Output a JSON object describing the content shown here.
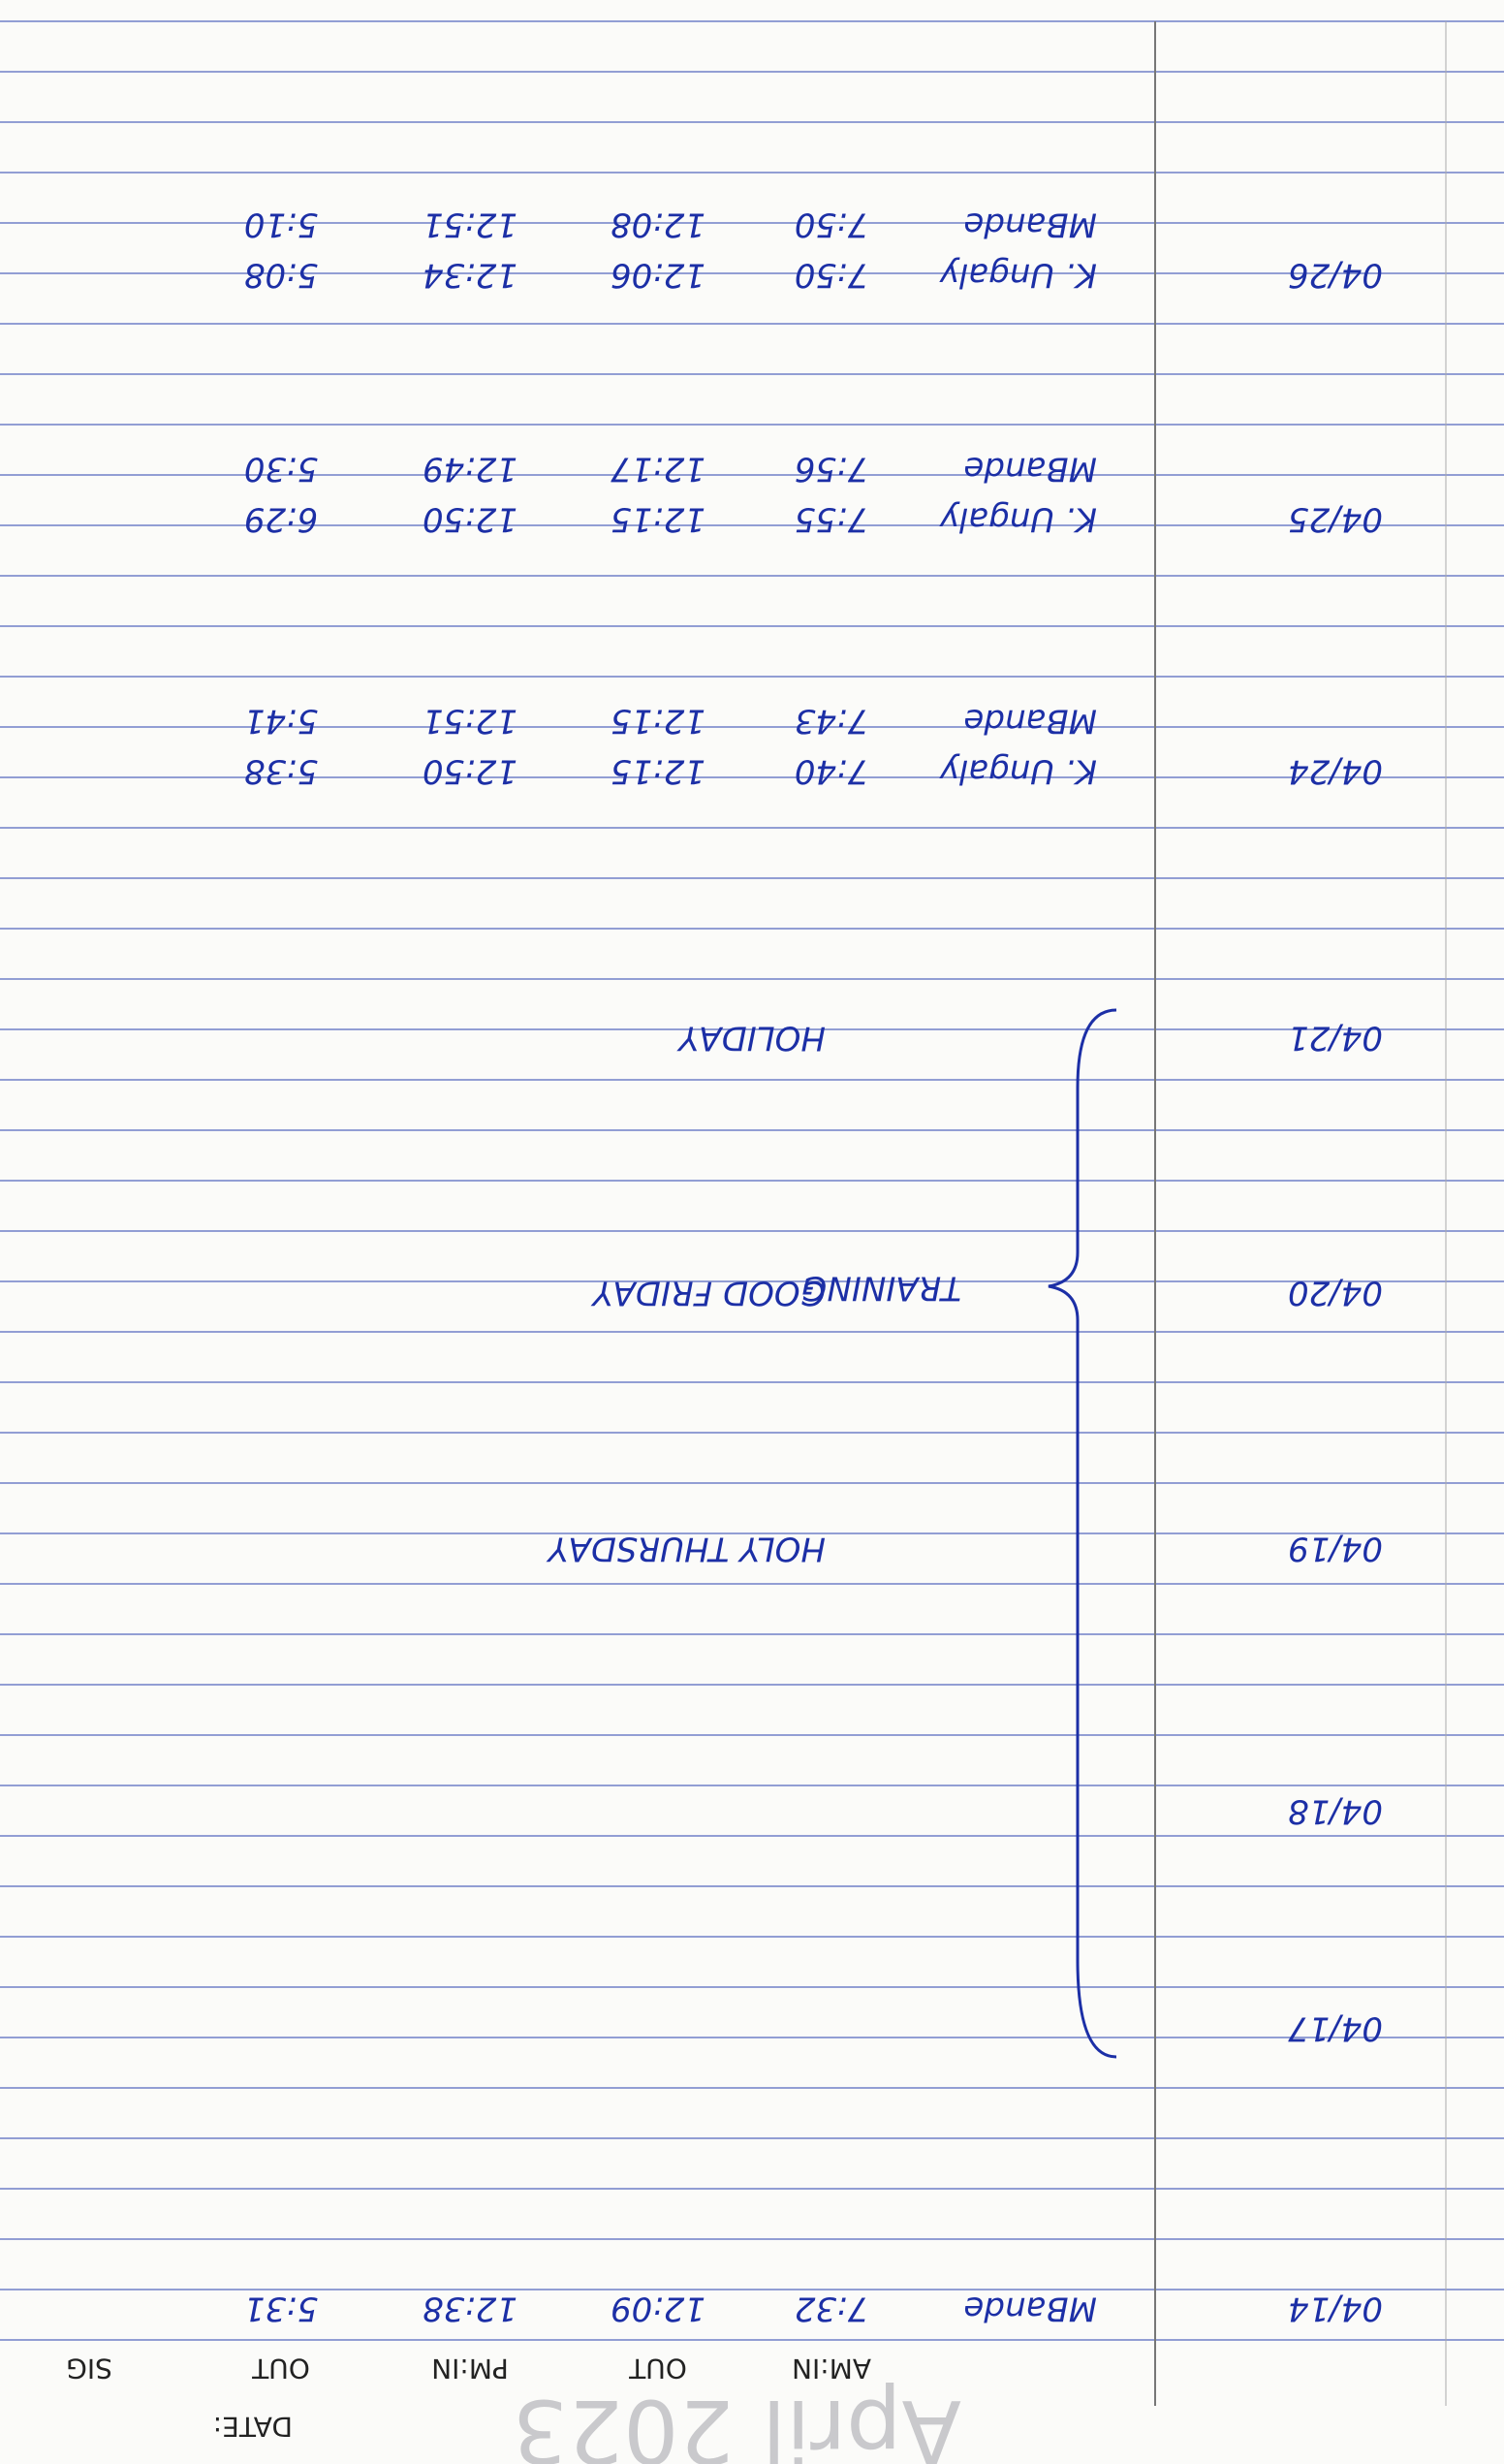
{
  "header": {
    "month": "April 2023",
    "date_label": "DATE:",
    "columns": [
      "AM:IN",
      "OUT",
      "PM:IN",
      "OUT",
      "SIG"
    ]
  },
  "training": "TRAINING",
  "entries": [
    {
      "date": "04/14",
      "lines": [
        {
          "name": "MBande",
          "times": [
            "7:32",
            "12:09",
            "12:38",
            "5:31"
          ]
        }
      ]
    },
    {
      "date": "04/17",
      "lines": []
    },
    {
      "date": "04/18",
      "lines": []
    },
    {
      "date": "04/19",
      "note": "HOLY THURSDAY",
      "lines": []
    },
    {
      "date": "04/20",
      "note": "GOOD FRIDAY",
      "lines": []
    },
    {
      "date": "04/21",
      "note": "HOLIDAY",
      "lines": []
    },
    {
      "date": "04/24",
      "lines": [
        {
          "name": "K. Ungaly",
          "times": [
            "7:40",
            "12:15",
            "12:50",
            "5:38"
          ]
        },
        {
          "name": "MBande",
          "times": [
            "7:43",
            "12:15",
            "12:51",
            "5:41"
          ]
        }
      ]
    },
    {
      "date": "04/25",
      "lines": [
        {
          "name": "K. Ungaly",
          "times": [
            "7:55",
            "12:15",
            "12:50",
            "6:29"
          ]
        },
        {
          "name": "MBande",
          "times": [
            "7:56",
            "12:17",
            "12:49",
            "5:30"
          ]
        }
      ]
    },
    {
      "date": "04/26",
      "lines": [
        {
          "name": "K. Ungaly",
          "times": [
            "7:50",
            "12:06",
            "12:34",
            "5:08"
          ]
        },
        {
          "name": "MBande",
          "times": [
            "7:50",
            "12:08",
            "12:51",
            "5:10"
          ]
        }
      ]
    }
  ]
}
